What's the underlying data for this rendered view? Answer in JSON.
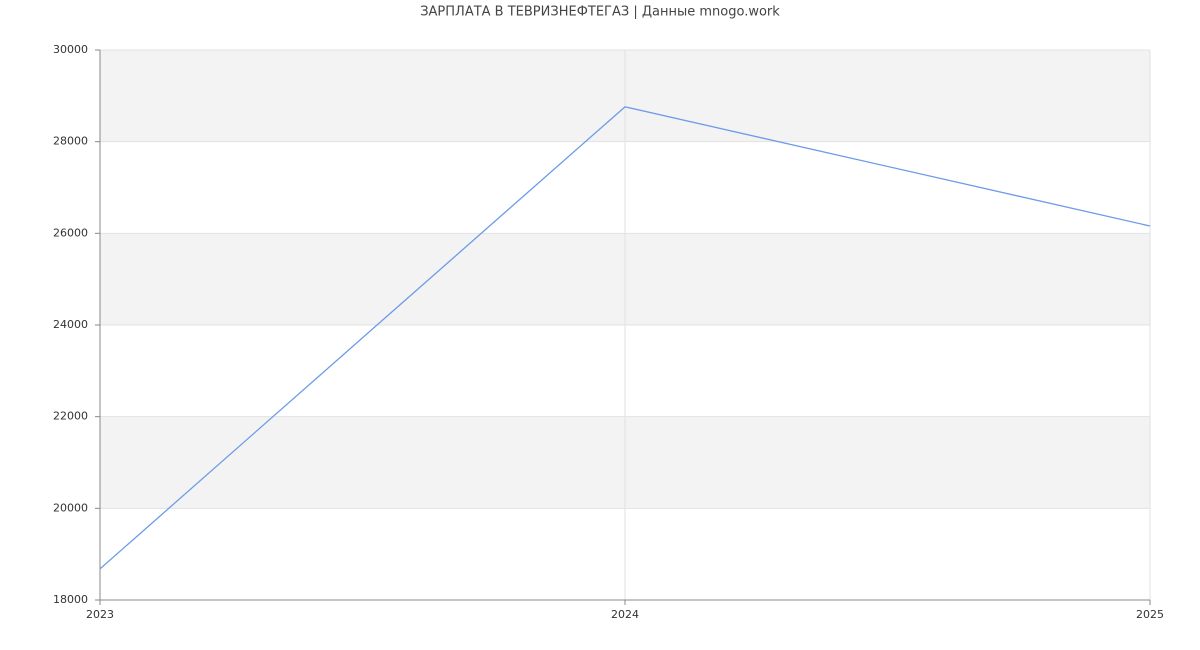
{
  "chart_data": {
    "type": "line",
    "title": "ЗАРПЛАТА В ТЕВРИЗНЕФТЕГАЗ | Данные mnogo.work",
    "x": [
      2023,
      2024,
      2025
    ],
    "series": [
      {
        "name": "Зарплата",
        "color": "#6d9be8",
        "values": [
          18680,
          28760,
          26160
        ]
      }
    ],
    "xlim": [
      2023,
      2025
    ],
    "xticks": [
      2023,
      2024,
      2025
    ],
    "ylim": [
      18000,
      30000
    ],
    "yticks": [
      18000,
      20000,
      22000,
      24000,
      26000,
      28000,
      30000
    ],
    "grid": true
  }
}
